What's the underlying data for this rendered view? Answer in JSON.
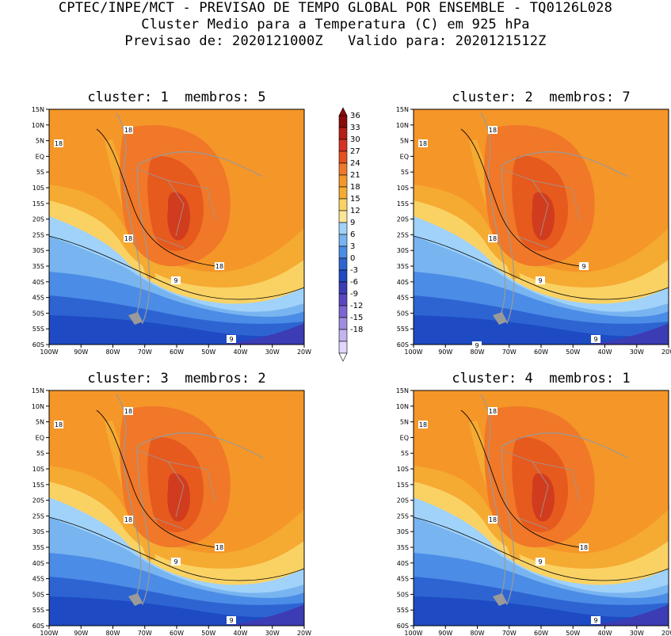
{
  "header": {
    "line1": "CPTEC/INPE/MCT - PREVISAO DE TEMPO GLOBAL POR ENSEMBLE - TQ0126L028",
    "line2": "Cluster Medio para a Temperatura (C) em 925 hPa",
    "line3": "Previsao de: 2020121000Z   Valido para: 2020121512Z"
  },
  "panels": [
    {
      "title": "cluster: 1  membros: 5",
      "contour_labels": [
        "18",
        "18",
        "18",
        "18",
        "9",
        "9"
      ]
    },
    {
      "title": "cluster: 2  membros: 7",
      "contour_labels": [
        "18",
        "18",
        "18",
        "9",
        "9",
        "9",
        "9"
      ]
    },
    {
      "title": "cluster: 3  membros: 2",
      "contour_labels": [
        "18",
        "18",
        "18",
        "18",
        "9",
        "9"
      ]
    },
    {
      "title": "cluster: 4  membros: 1",
      "contour_labels": [
        "18",
        "18",
        "18",
        "18",
        "9",
        "9"
      ]
    }
  ],
  "axes": {
    "lat_ticks": [
      "15N",
      "10N",
      "5N",
      "EQ",
      "5S",
      "10S",
      "15S",
      "20S",
      "25S",
      "30S",
      "35S",
      "40S",
      "45S",
      "50S",
      "55S",
      "60S"
    ],
    "lon_ticks": [
      "100W",
      "90W",
      "80W",
      "70W",
      "60W",
      "50W",
      "40W",
      "30W",
      "20W"
    ]
  },
  "colorbar": {
    "labels": [
      "36",
      "33",
      "30",
      "27",
      "24",
      "21",
      "18",
      "15",
      "12",
      "9",
      "6",
      "3",
      "0",
      "-3",
      "-6",
      "-9",
      "-12",
      "-15",
      "-18"
    ],
    "colors": [
      "#8c0a0a",
      "#b41e14",
      "#d73223",
      "#e6501e",
      "#f0782d",
      "#f59628",
      "#f5aa32",
      "#fad264",
      "#fae696",
      "#a0d2fa",
      "#78b4f0",
      "#4b8ce6",
      "#2d64d2",
      "#1e4bc3",
      "#3c3cb4",
      "#5a46c3",
      "#7d64d2",
      "#a08ce1",
      "#c3b4f0",
      "#e1d7fa"
    ]
  },
  "map_colors": {
    "t24": "#f07828",
    "t27": "#e65a1e",
    "t30": "#d23c1e",
    "t21": "#f59628",
    "t18": "#f5aa32",
    "t15": "#fad264",
    "t12": "#a0d2fa",
    "t9": "#78b4f0",
    "t6": "#4b8ce6",
    "t3": "#2d64d2",
    "t0": "#1e4bc3",
    "tm3": "#3c3cb4",
    "land": "#9a9a9a"
  }
}
